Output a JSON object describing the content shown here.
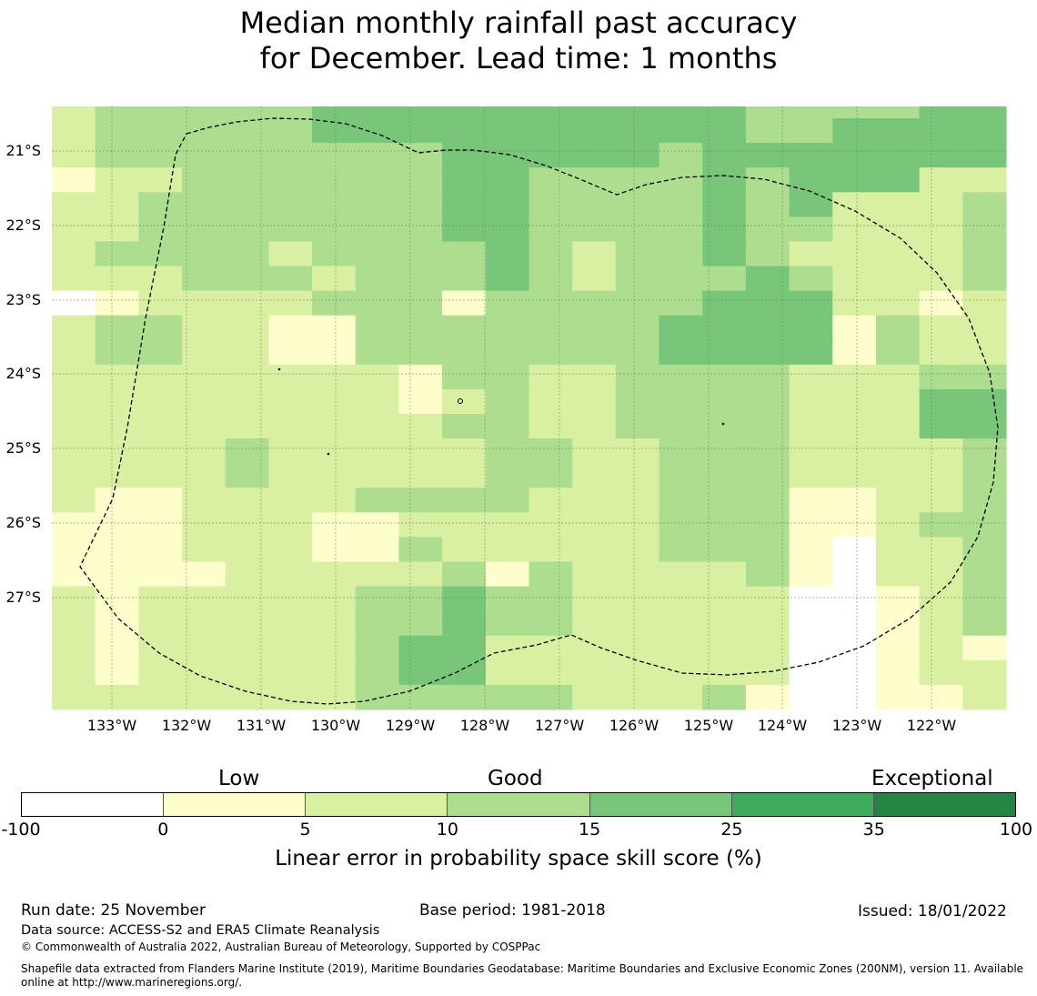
{
  "title": {
    "line1": "Median monthly rainfall past accuracy",
    "line2": "for December. Lead time: 1 months"
  },
  "colors": {
    "no_skill": "#ffffff",
    "low": "#fefecc",
    "low2": "#d9efa2",
    "good": "#addd8e",
    "good2": "#78c679",
    "exceptional": "#41ab5d",
    "exceptional2": "#238443",
    "boundary": "#000000"
  },
  "map": {
    "lat_labels": [
      "21°S",
      "22°S",
      "23°S",
      "24°S",
      "25°S",
      "26°S",
      "27°S"
    ],
    "lon_labels": [
      "133°W",
      "132°W",
      "131°W",
      "130°W",
      "129°W",
      "128°W",
      "127°W",
      "126°W",
      "125°W",
      "124°W",
      "123°W",
      "122°W"
    ],
    "grid_rows": [
      "2333334444444444333344",
      "2333334444444444334444",
      "2333333334444434444444",
      "1223333334433334344422",
      "2233333334433334342223",
      "2233333334433334332223",
      "2333323333432334322223",
      "2223332333432333432223",
      "0122223331333334442212",
      "2332211333333344441322",
      "2332211333333344441322",
      "2222222213322333322233",
      "2222222212322333322244",
      "2222222223322333322244",
      "2222322222332233322223",
      "2222322222332233322223",
      "2112222333322233311223",
      "1112221122222233311233",
      "1112221132222233310223",
      "1111222223132222310223",
      "2122222334332222200123",
      "2122222334332222200123",
      "2122222344222222200121",
      "2122222344222222200122",
      "2222222333332223100112"
    ]
  },
  "colorbar": {
    "ticks": [
      "-100",
      "0",
      "5",
      "10",
      "15",
      "25",
      "35",
      "100"
    ],
    "categories": [
      "Low",
      "Good",
      "Exceptional"
    ],
    "label": "Linear error in probability space skill score (%)"
  },
  "footer": {
    "run_date": "Run date: 25 November",
    "base_period": "Base period: 1981-2018",
    "issued": "Issued: 18/01/2022",
    "data_source": "Data source: ACCESS-S2 and ERA5 Climate Reanalysis",
    "copyright": "© Commonwealth of Australia 2022, Australian Bureau of Meteorology, Supported by COSPPac",
    "shapefile_line1": "Shapefile data extracted from Flanders Marine Institute (2019), Maritime Boundaries Geodatabase: Maritime Boundaries and Exclusive Economic Zones (200NM), version 11. Available",
    "shapefile_line2": "online at http://www.marineregions.org/."
  }
}
